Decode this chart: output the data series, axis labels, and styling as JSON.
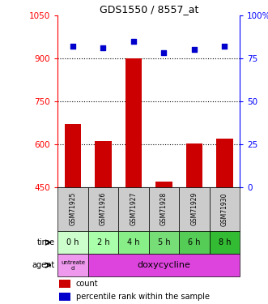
{
  "title": "GDS1550 / 8557_at",
  "samples": [
    "GSM71925",
    "GSM71926",
    "GSM71927",
    "GSM71928",
    "GSM71929",
    "GSM71930"
  ],
  "counts": [
    670,
    610,
    900,
    468,
    603,
    618
  ],
  "percentiles": [
    82,
    81,
    85,
    78,
    80,
    82
  ],
  "ylim_left": [
    450,
    1050
  ],
  "ylim_right": [
    0,
    100
  ],
  "yticks_left": [
    450,
    600,
    750,
    900,
    1050
  ],
  "yticks_right": [
    0,
    25,
    50,
    75,
    100
  ],
  "bar_color": "#cc0000",
  "dot_color": "#0000cc",
  "bar_bottom": 450,
  "time_labels": [
    "0 h",
    "2 h",
    "4 h",
    "5 h",
    "6 h",
    "8 h"
  ],
  "time_colors": [
    "#ccffcc",
    "#aaffaa",
    "#88ee88",
    "#77dd77",
    "#55cc55",
    "#33bb33"
  ],
  "gsm_bg": "#cccccc",
  "agent_untreated": "untreate\nd",
  "agent_treated": "doxycycline",
  "agent_untreated_bg": "#ee99ee",
  "agent_treated_bg": "#dd44dd",
  "legend_count_label": "count",
  "legend_pct_label": "percentile rank within the sample",
  "hgrid_ticks": [
    600,
    750,
    900
  ]
}
